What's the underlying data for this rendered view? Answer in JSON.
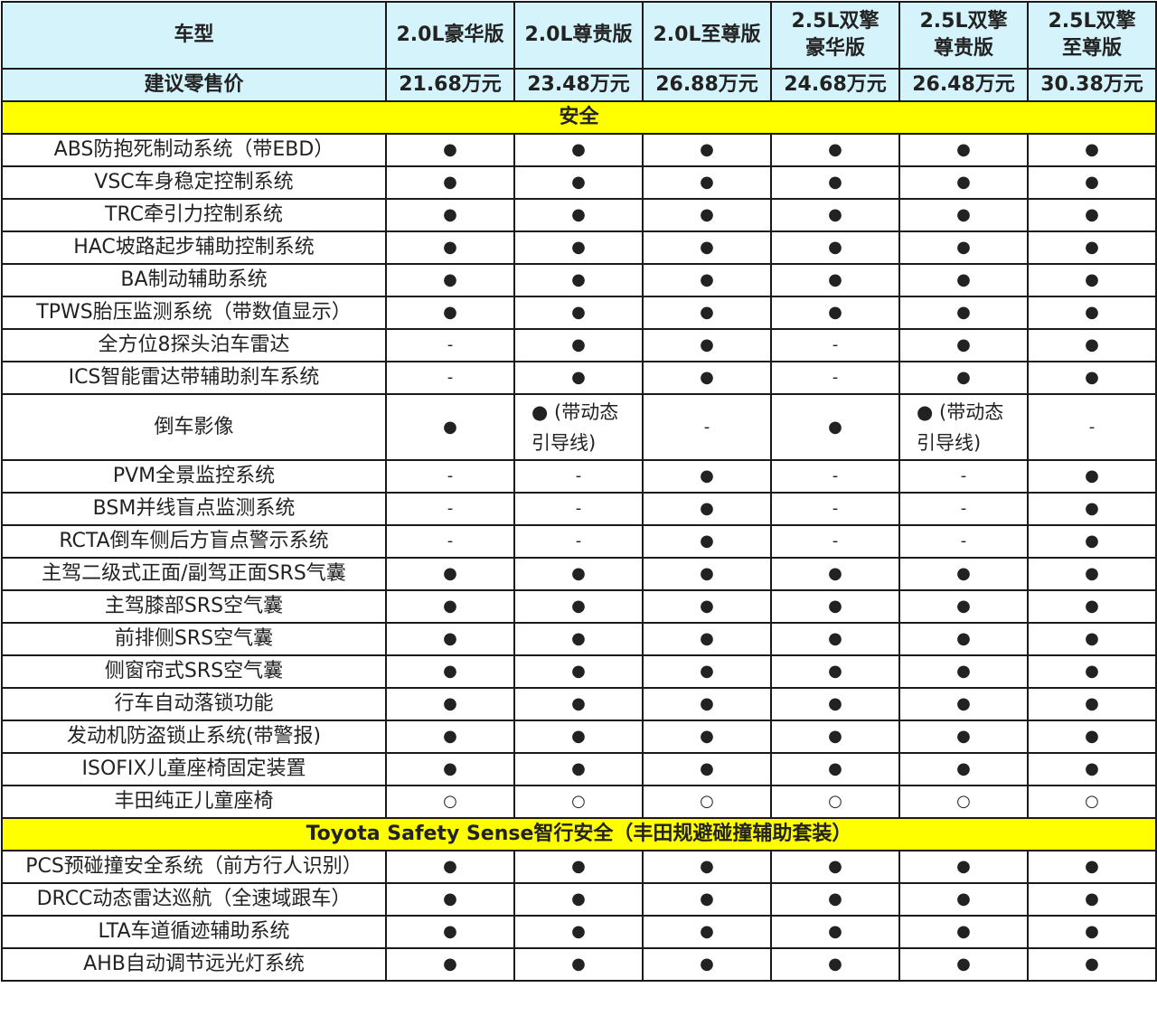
{
  "header": {
    "label": "车型",
    "models": [
      "2.0L豪华版",
      "2.0L尊贵版",
      "2.0L至尊版",
      "2.5L双擎\n豪华版",
      "2.5L双擎\n尊贵版",
      "2.5L双擎\n至尊版"
    ],
    "price_label": "建议零售价",
    "prices": [
      "21.68万元",
      "23.48万元",
      "26.88万元",
      "24.68万元",
      "26.48万元",
      "30.38万元"
    ]
  },
  "colors": {
    "header_bg": "#d5f3fb",
    "section_bg": "#ffff00",
    "border": "#1a1a1a"
  },
  "sections": [
    {
      "title": "安全",
      "rows": [
        {
          "feature": "ABS防抱死制动系统（带EBD）",
          "values": [
            "●",
            "●",
            "●",
            "●",
            "●",
            "●"
          ]
        },
        {
          "feature": "VSC车身稳定控制系统",
          "values": [
            "●",
            "●",
            "●",
            "●",
            "●",
            "●"
          ]
        },
        {
          "feature": "TRC牵引力控制系统",
          "values": [
            "●",
            "●",
            "●",
            "●",
            "●",
            "●"
          ]
        },
        {
          "feature": "HAC坡路起步辅助控制系统",
          "values": [
            "●",
            "●",
            "●",
            "●",
            "●",
            "●"
          ]
        },
        {
          "feature": "BA制动辅助系统",
          "values": [
            "●",
            "●",
            "●",
            "●",
            "●",
            "●"
          ]
        },
        {
          "feature": "TPWS胎压监测系统（带数值显示）",
          "values": [
            "●",
            "●",
            "●",
            "●",
            "●",
            "●"
          ]
        },
        {
          "feature": "全方位8探头泊车雷达",
          "values": [
            "-",
            "●",
            "●",
            "-",
            "●",
            "●"
          ]
        },
        {
          "feature": "ICS智能雷达带辅助刹车系统",
          "values": [
            "-",
            "●",
            "●",
            "-",
            "●",
            "●"
          ]
        },
        {
          "feature": "倒车影像",
          "values": [
            "●",
            "● (带动态\n引导线)",
            "-",
            "●",
            "● (带动态\n引导线)",
            "-"
          ]
        },
        {
          "feature": "PVM全景监控系统",
          "values": [
            "-",
            "-",
            "●",
            "-",
            "-",
            "●"
          ]
        },
        {
          "feature": "BSM并线盲点监测系统",
          "values": [
            "-",
            "-",
            "●",
            "-",
            "-",
            "●"
          ]
        },
        {
          "feature": "RCTA倒车侧后方盲点警示系统",
          "values": [
            "-",
            "-",
            "●",
            "-",
            "-",
            "●"
          ]
        },
        {
          "feature": "主驾二级式正面/副驾正面SRS气囊",
          "values": [
            "●",
            "●",
            "●",
            "●",
            "●",
            "●"
          ]
        },
        {
          "feature": "主驾膝部SRS空气囊",
          "values": [
            "●",
            "●",
            "●",
            "●",
            "●",
            "●"
          ]
        },
        {
          "feature": "前排侧SRS空气囊",
          "values": [
            "●",
            "●",
            "●",
            "●",
            "●",
            "●"
          ]
        },
        {
          "feature": "侧窗帘式SRS空气囊",
          "values": [
            "●",
            "●",
            "●",
            "●",
            "●",
            "●"
          ]
        },
        {
          "feature": "行车自动落锁功能",
          "values": [
            "●",
            "●",
            "●",
            "●",
            "●",
            "●"
          ]
        },
        {
          "feature": "发动机防盗锁止系统(带警报)",
          "values": [
            "●",
            "●",
            "●",
            "●",
            "●",
            "●"
          ]
        },
        {
          "feature": "ISOFIX儿童座椅固定装置",
          "values": [
            "●",
            "●",
            "●",
            "●",
            "●",
            "●"
          ]
        },
        {
          "feature": "丰田纯正儿童座椅",
          "values": [
            "○",
            "○",
            "○",
            "○",
            "○",
            "○"
          ]
        }
      ]
    },
    {
      "title": "Toyota Safety Sense智行安全（丰田规避碰撞辅助套装）",
      "rows": [
        {
          "feature": "PCS预碰撞安全系统（前方行人识别）",
          "values": [
            "●",
            "●",
            "●",
            "●",
            "●",
            "●"
          ]
        },
        {
          "feature": "DRCC动态雷达巡航（全速域跟车）",
          "values": [
            "●",
            "●",
            "●",
            "●",
            "●",
            "●"
          ]
        },
        {
          "feature": "LTA车道循迹辅助系统",
          "values": [
            "●",
            "●",
            "●",
            "●",
            "●",
            "●"
          ]
        },
        {
          "feature": "AHB自动调节远光灯系统",
          "values": [
            "●",
            "●",
            "●",
            "●",
            "●",
            "●"
          ]
        }
      ]
    }
  ]
}
